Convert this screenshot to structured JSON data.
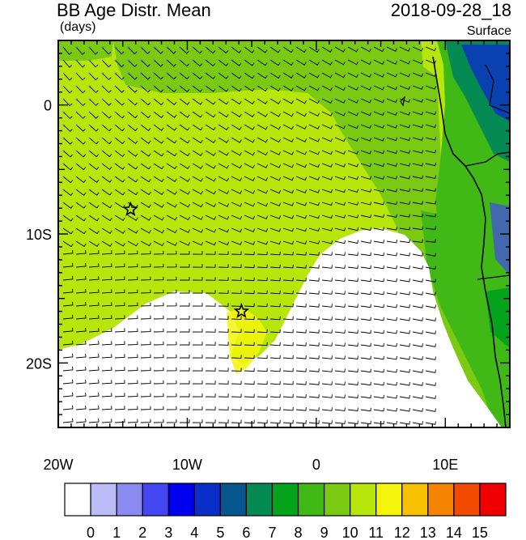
{
  "header": {
    "title": "BB Age Distr. Mean",
    "units": "(days)",
    "datetime": "2018-09-28_18",
    "level": "Surface"
  },
  "axes": {
    "lon_labels": [
      "20W",
      "10W",
      "0",
      "10E"
    ],
    "lon_values": [
      -20,
      -10,
      0,
      10
    ],
    "lat_labels": [
      "0",
      "10S",
      "20S"
    ],
    "lat_values": [
      0,
      -10,
      -20
    ],
    "lon_range": [
      -20,
      15
    ],
    "lat_range": [
      -25,
      5
    ]
  },
  "markers": [
    {
      "name": "star",
      "lon": -14.4,
      "lat": -8.1
    },
    {
      "name": "star",
      "lon": -5.8,
      "lat": -16.0
    }
  ],
  "colorbar": {
    "labels": [
      "0",
      "1",
      "2",
      "3",
      "4",
      "5",
      "6",
      "7",
      "8",
      "9",
      "10",
      "11",
      "12",
      "13",
      "14",
      "15"
    ],
    "colors": [
      "#ffffff",
      "#bcbcf6",
      "#8a8af0",
      "#4646f0",
      "#0000f0",
      "#0a2ec8",
      "#07578e",
      "#058a53",
      "#05a31c",
      "#40b815",
      "#7ac912",
      "#b8e60a",
      "#f5f50c",
      "#f7c000",
      "#f58500",
      "#f24a00",
      "#f00000"
    ]
  }
}
